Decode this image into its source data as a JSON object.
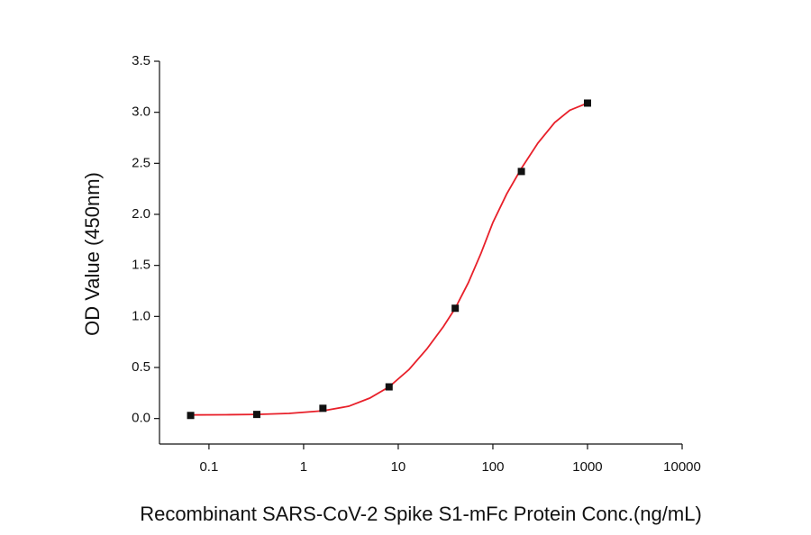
{
  "chart_data": {
    "type": "scatter",
    "x_label": "Recombinant SARS-CoV-2 Spike S1-mFc Protein Conc.(ng/mL)",
    "y_label": "OD Value (450nm)",
    "x_scale": "log",
    "grid": false,
    "xlim": [
      0.03,
      10000
    ],
    "ylim": [
      -0.25,
      3.5
    ],
    "xticks": [
      0.1,
      1,
      10,
      100,
      1000,
      10000
    ],
    "yticks": [
      {
        "value": 0,
        "label": "0.0"
      },
      0.5,
      {
        "value": 1,
        "label": "1.0"
      },
      1.5,
      {
        "value": 2,
        "label": "2.0"
      },
      2.5,
      {
        "value": 3,
        "label": "3.0"
      },
      3.5
    ],
    "series": [
      {
        "color": "#111111",
        "x": [
          0.064,
          0.32,
          1.6,
          8,
          40,
          200,
          1000
        ],
        "values": [
          0.03,
          0.04,
          0.1,
          0.31,
          1.08,
          2.42,
          3.09
        ]
      }
    ],
    "fit": {
      "color": "#e8202a",
      "x": [
        0.064,
        0.15,
        0.32,
        0.7,
        1.6,
        3,
        5,
        8,
        13,
        20,
        30,
        40,
        55,
        75,
        100,
        140,
        200,
        300,
        450,
        650,
        1000
      ],
      "values": [
        0.035,
        0.037,
        0.04,
        0.05,
        0.075,
        0.12,
        0.2,
        0.31,
        0.48,
        0.68,
        0.9,
        1.08,
        1.33,
        1.62,
        1.92,
        2.2,
        2.45,
        2.7,
        2.9,
        3.02,
        3.09
      ]
    }
  }
}
